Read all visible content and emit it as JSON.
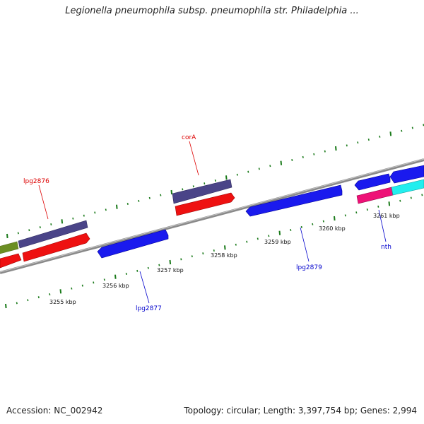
{
  "header": {
    "title": "Legionella pneumophila subsp. pneumophila str. Philadelphia ..."
  },
  "footer": {
    "accession": "Accession: NC_002942",
    "topology": "Topology: circular; Length: 3,397,754 bp; Genes: 2,994"
  },
  "scale": {
    "labels": [
      "3255 kbp",
      "3256 kbp",
      "3257 kbp",
      "3258 kbp",
      "3259 kbp",
      "3260 kbp",
      "3261 kbp"
    ]
  },
  "genes": {
    "lpg2876": "lpg2876",
    "corA": "corA",
    "lpg2877": "lpg2877",
    "lpg2879": "lpg2879",
    "nth": "nth"
  },
  "colors": {
    "forward_label": "#dd0000",
    "reverse_label": "#0000cc",
    "tick": "#1a7a1a",
    "backbone": "#888888",
    "cds_forward": "#4a4488",
    "cds_red": "#ee1111",
    "cds_blue": "#1a1aee",
    "cds_olive": "#6b8e23",
    "cds_magenta": "#ee1177",
    "cds_cyan": "#22eeee"
  }
}
